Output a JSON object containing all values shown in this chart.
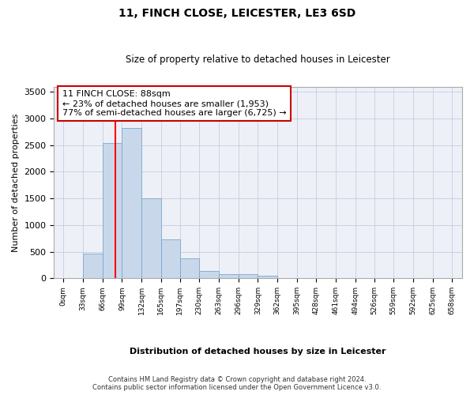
{
  "title": "11, FINCH CLOSE, LEICESTER, LE3 6SD",
  "subtitle": "Size of property relative to detached houses in Leicester",
  "xlabel": "Distribution of detached houses by size in Leicester",
  "ylabel": "Number of detached properties",
  "bar_color": "#c8d8ea",
  "bar_edge_color": "#7aa8cc",
  "grid_color": "#c8cce0",
  "background_color": "#eef0f8",
  "red_line_x": 88,
  "annotation_text": "11 FINCH CLOSE: 88sqm\n← 23% of detached houses are smaller (1,953)\n77% of semi-detached houses are larger (6,725) →",
  "annotation_box_color": "#ffffff",
  "annotation_border_color": "#cc0000",
  "footer_line1": "Contains HM Land Registry data © Crown copyright and database right 2024.",
  "footer_line2": "Contains public sector information licensed under the Open Government Licence v3.0.",
  "bin_edges": [
    0,
    33,
    66,
    99,
    132,
    165,
    197,
    230,
    263,
    296,
    329,
    362,
    395,
    428,
    461,
    494,
    526,
    559,
    592,
    625,
    658
  ],
  "bar_heights": [
    5,
    470,
    2540,
    2820,
    1500,
    730,
    375,
    140,
    80,
    80,
    55,
    10,
    5,
    2,
    1,
    0,
    0,
    0,
    0,
    0
  ],
  "ylim": [
    0,
    3600
  ],
  "xlim": [
    -16,
    675
  ],
  "yticks": [
    0,
    500,
    1000,
    1500,
    2000,
    2500,
    3000,
    3500
  ],
  "tick_labels": [
    "0sqm",
    "33sqm",
    "66sqm",
    "99sqm",
    "132sqm",
    "165sqm",
    "197sqm",
    "230sqm",
    "263sqm",
    "296sqm",
    "329sqm",
    "362sqm",
    "395sqm",
    "428sqm",
    "461sqm",
    "494sqm",
    "526sqm",
    "559sqm",
    "592sqm",
    "625sqm",
    "658sqm"
  ]
}
